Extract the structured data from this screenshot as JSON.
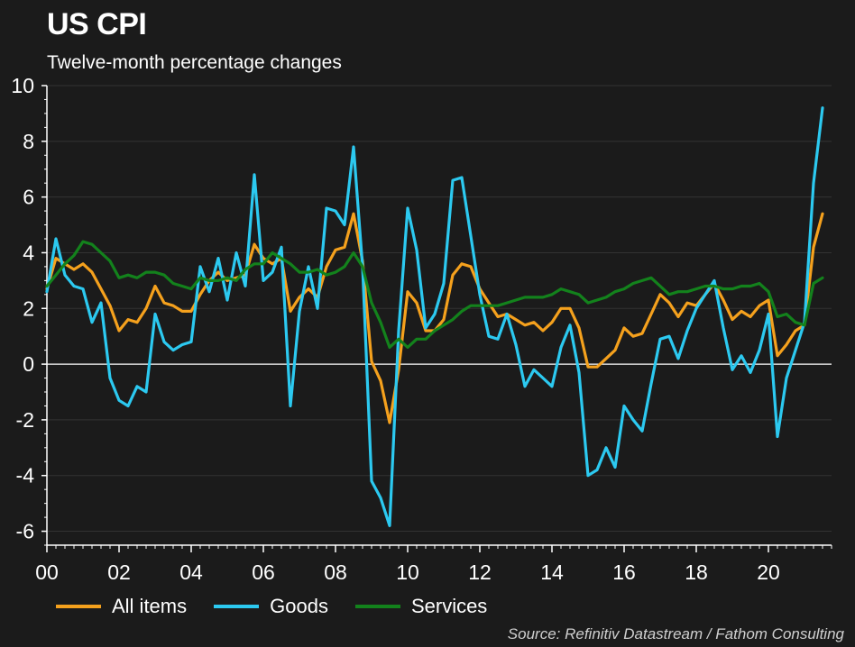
{
  "header": {
    "title": "US CPI",
    "subtitle": "Twelve-month percentage changes"
  },
  "footer": {
    "source": "Source: Refinitiv Datastream / Fathom Consulting"
  },
  "colors": {
    "background": "#1b1b1b",
    "all_items": "#f5a11d",
    "goods": "#2cc9f0",
    "services": "#13821c",
    "axis": "#ffffff",
    "grid": "#333333"
  },
  "chart_data": {
    "type": "line",
    "xlim": [
      2000,
      2021.75
    ],
    "ylim": [
      -6.5,
      10
    ],
    "x_tick_values": [
      2000,
      2002,
      2004,
      2006,
      2008,
      2010,
      2012,
      2014,
      2016,
      2018,
      2020
    ],
    "x_tick_labels": [
      "00",
      "02",
      "04",
      "06",
      "08",
      "10",
      "12",
      "14",
      "16",
      "18",
      "20"
    ],
    "y_tick_values": [
      -6,
      -4,
      -2,
      0,
      2,
      4,
      6,
      8,
      10
    ],
    "y_tick_labels": [
      "-6",
      "-4",
      "-2",
      "0",
      "2",
      "4",
      "6",
      "8",
      "10"
    ],
    "grid": "horizontal",
    "legend_position": "bottom-left",
    "series": [
      {
        "name": "All items",
        "color": "#f5a11d",
        "x": [
          2000,
          2000.25,
          2000.5,
          2000.75,
          2001,
          2001.25,
          2001.5,
          2001.75,
          2002,
          2002.25,
          2002.5,
          2002.75,
          2003,
          2003.25,
          2003.5,
          2003.75,
          2004,
          2004.25,
          2004.5,
          2004.75,
          2005,
          2005.25,
          2005.5,
          2005.75,
          2006,
          2006.25,
          2006.5,
          2006.75,
          2007,
          2007.25,
          2007.5,
          2007.75,
          2008,
          2008.25,
          2008.5,
          2008.75,
          2009,
          2009.25,
          2009.5,
          2009.75,
          2010,
          2010.25,
          2010.5,
          2010.75,
          2011,
          2011.25,
          2011.5,
          2011.75,
          2012,
          2012.25,
          2012.5,
          2012.75,
          2013,
          2013.25,
          2013.5,
          2013.75,
          2014,
          2014.25,
          2014.5,
          2014.75,
          2015,
          2015.25,
          2015.5,
          2015.75,
          2016,
          2016.25,
          2016.5,
          2016.75,
          2017,
          2017.25,
          2017.5,
          2017.75,
          2018,
          2018.25,
          2018.5,
          2018.75,
          2019,
          2019.25,
          2019.5,
          2019.75,
          2020,
          2020.25,
          2020.5,
          2020.75,
          2021,
          2021.25,
          2021.5
        ],
        "values": [
          2.7,
          3.8,
          3.6,
          3.4,
          3.6,
          3.3,
          2.7,
          2.1,
          1.2,
          1.6,
          1.5,
          2.0,
          2.8,
          2.2,
          2.1,
          1.9,
          1.9,
          2.5,
          3.0,
          3.3,
          3.0,
          3.1,
          3.2,
          4.3,
          3.8,
          3.6,
          3.8,
          1.9,
          2.4,
          2.7,
          2.4,
          3.5,
          4.1,
          4.2,
          5.4,
          3.7,
          0.1,
          -0.6,
          -2.1,
          -0.2,
          2.6,
          2.2,
          1.2,
          1.2,
          1.6,
          3.2,
          3.6,
          3.5,
          2.7,
          2.2,
          1.7,
          1.8,
          1.6,
          1.4,
          1.5,
          1.2,
          1.5,
          2.0,
          2.0,
          1.3,
          -0.1,
          -0.1,
          0.2,
          0.5,
          1.3,
          1.0,
          1.1,
          1.8,
          2.5,
          2.2,
          1.7,
          2.2,
          2.1,
          2.5,
          2.9,
          2.3,
          1.6,
          1.9,
          1.7,
          2.1,
          2.3,
          0.3,
          0.7,
          1.2,
          1.4,
          4.2,
          5.4
        ]
      },
      {
        "name": "Goods",
        "color": "#2cc9f0",
        "x": [
          2000,
          2000.25,
          2000.5,
          2000.75,
          2001,
          2001.25,
          2001.5,
          2001.75,
          2002,
          2002.25,
          2002.5,
          2002.75,
          2003,
          2003.25,
          2003.5,
          2003.75,
          2004,
          2004.25,
          2004.5,
          2004.75,
          2005,
          2005.25,
          2005.5,
          2005.75,
          2006,
          2006.25,
          2006.5,
          2006.75,
          2007,
          2007.25,
          2007.5,
          2007.75,
          2008,
          2008.25,
          2008.5,
          2008.75,
          2009,
          2009.25,
          2009.5,
          2009.75,
          2010,
          2010.25,
          2010.5,
          2010.75,
          2011,
          2011.25,
          2011.5,
          2011.75,
          2012,
          2012.25,
          2012.5,
          2012.75,
          2013,
          2013.25,
          2013.5,
          2013.75,
          2014,
          2014.25,
          2014.5,
          2014.75,
          2015,
          2015.25,
          2015.5,
          2015.75,
          2016,
          2016.25,
          2016.5,
          2016.75,
          2017,
          2017.25,
          2017.5,
          2017.75,
          2018,
          2018.25,
          2018.5,
          2018.75,
          2019,
          2019.25,
          2019.5,
          2019.75,
          2020,
          2020.25,
          2020.5,
          2020.75,
          2021,
          2021.25,
          2021.5
        ],
        "values": [
          2.6,
          4.5,
          3.2,
          2.8,
          2.7,
          1.5,
          2.2,
          -0.5,
          -1.3,
          -1.5,
          -0.8,
          -1.0,
          1.8,
          0.8,
          0.5,
          0.7,
          0.8,
          3.5,
          2.6,
          3.8,
          2.3,
          4.0,
          2.8,
          6.8,
          3.0,
          3.3,
          4.2,
          -1.5,
          1.9,
          3.5,
          2.0,
          5.6,
          5.5,
          5.0,
          7.8,
          3.5,
          -4.2,
          -4.8,
          -5.8,
          1.2,
          5.6,
          4.1,
          1.3,
          1.8,
          2.9,
          6.6,
          6.7,
          4.6,
          2.5,
          1.0,
          0.9,
          1.8,
          0.7,
          -0.8,
          -0.2,
          -0.5,
          -0.8,
          0.6,
          1.4,
          -0.3,
          -4.0,
          -3.8,
          -3.0,
          -3.7,
          -1.5,
          -2.0,
          -2.4,
          -0.7,
          0.9,
          1.0,
          0.2,
          1.2,
          2.0,
          2.5,
          3.0,
          1.3,
          -0.2,
          0.3,
          -0.3,
          0.5,
          1.8,
          -2.6,
          -0.5,
          0.5,
          1.5,
          6.5,
          9.2
        ]
      },
      {
        "name": "Services",
        "color": "#13821c",
        "x": [
          2000,
          2000.25,
          2000.5,
          2000.75,
          2001,
          2001.25,
          2001.5,
          2001.75,
          2002,
          2002.25,
          2002.5,
          2002.75,
          2003,
          2003.25,
          2003.5,
          2003.75,
          2004,
          2004.25,
          2004.5,
          2004.75,
          2005,
          2005.25,
          2005.5,
          2005.75,
          2006,
          2006.25,
          2006.5,
          2006.75,
          2007,
          2007.25,
          2007.5,
          2007.75,
          2008,
          2008.25,
          2008.5,
          2008.75,
          2009,
          2009.25,
          2009.5,
          2009.75,
          2010,
          2010.25,
          2010.5,
          2010.75,
          2011,
          2011.25,
          2011.5,
          2011.75,
          2012,
          2012.25,
          2012.5,
          2012.75,
          2013,
          2013.25,
          2013.5,
          2013.75,
          2014,
          2014.25,
          2014.5,
          2014.75,
          2015,
          2015.25,
          2015.5,
          2015.75,
          2016,
          2016.25,
          2016.5,
          2016.75,
          2017,
          2017.25,
          2017.5,
          2017.75,
          2018,
          2018.25,
          2018.5,
          2018.75,
          2019,
          2019.25,
          2019.5,
          2019.75,
          2020,
          2020.25,
          2020.5,
          2020.75,
          2021,
          2021.25,
          2021.5
        ],
        "values": [
          2.8,
          3.2,
          3.6,
          3.9,
          4.4,
          4.3,
          4.0,
          3.7,
          3.1,
          3.2,
          3.1,
          3.3,
          3.3,
          3.2,
          2.9,
          2.8,
          2.7,
          3.1,
          3.0,
          3.0,
          3.1,
          3.0,
          3.4,
          3.6,
          3.6,
          4.0,
          3.8,
          3.6,
          3.3,
          3.3,
          3.4,
          3.2,
          3.3,
          3.5,
          4.0,
          3.5,
          2.2,
          1.5,
          0.6,
          0.9,
          0.6,
          0.9,
          0.9,
          1.2,
          1.4,
          1.6,
          1.9,
          2.1,
          2.1,
          2.1,
          2.1,
          2.2,
          2.3,
          2.4,
          2.4,
          2.4,
          2.5,
          2.7,
          2.6,
          2.5,
          2.2,
          2.3,
          2.4,
          2.6,
          2.7,
          2.9,
          3.0,
          3.1,
          2.8,
          2.5,
          2.6,
          2.6,
          2.7,
          2.8,
          2.8,
          2.7,
          2.7,
          2.8,
          2.8,
          2.9,
          2.6,
          1.7,
          1.8,
          1.5,
          1.4,
          2.9,
          3.1
        ]
      }
    ]
  }
}
